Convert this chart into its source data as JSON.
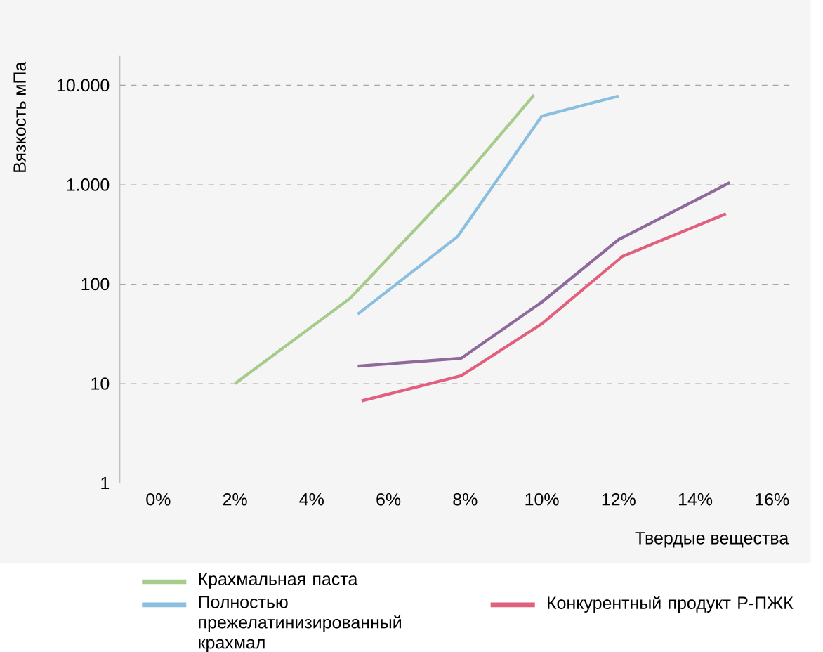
{
  "chart_data": {
    "type": "line",
    "xlabel": "Твердые вещества",
    "ylabel": "Вязкость мПа",
    "log": "y",
    "grid": "y",
    "legend": "bottom",
    "line_style": "solid",
    "marker": "none",
    "xlim": [
      -1,
      16.6
    ],
    "ylim": [
      1,
      20000
    ],
    "xticks": [
      {
        "value": 0,
        "label": "0%"
      },
      {
        "value": 2,
        "label": "2%"
      },
      {
        "value": 4,
        "label": "4%"
      },
      {
        "value": 6,
        "label": "6%"
      },
      {
        "value": 8,
        "label": "8%"
      },
      {
        "value": 10,
        "label": "10%"
      },
      {
        "value": 12,
        "label": "12%"
      },
      {
        "value": 14,
        "label": "14%"
      },
      {
        "value": 16,
        "label": "16%"
      }
    ],
    "yticks": [
      1,
      10,
      100,
      {
        "value": 1000,
        "label": "1.000"
      },
      {
        "value": 10000,
        "label": "10.000"
      }
    ],
    "series": [
      {
        "name": "Крахмальная паста",
        "color": "#a5cc8a",
        "x": [
          2,
          5,
          7.9,
          9.8
        ],
        "values": [
          10,
          72,
          1100,
          8000
        ]
      },
      {
        "name": "Полностью прежелатинизированный крахмал",
        "color": "#8bbfdf",
        "x": [
          5.2,
          7.8,
          10,
          12
        ],
        "values": [
          50,
          300,
          4900,
          7800
        ]
      },
      {
        "color": "#8e6a9c",
        "x": [
          5.2,
          7.9,
          10,
          12,
          14.9
        ],
        "values": [
          15,
          18,
          66,
          280,
          1050
        ]
      },
      {
        "name": "Конкурентный продукт Р-ПЖК",
        "color": "#e0607e",
        "x": [
          5.3,
          7.9,
          10,
          12.1,
          14.8
        ],
        "values": [
          6.7,
          12,
          40,
          190,
          510
        ]
      }
    ]
  }
}
